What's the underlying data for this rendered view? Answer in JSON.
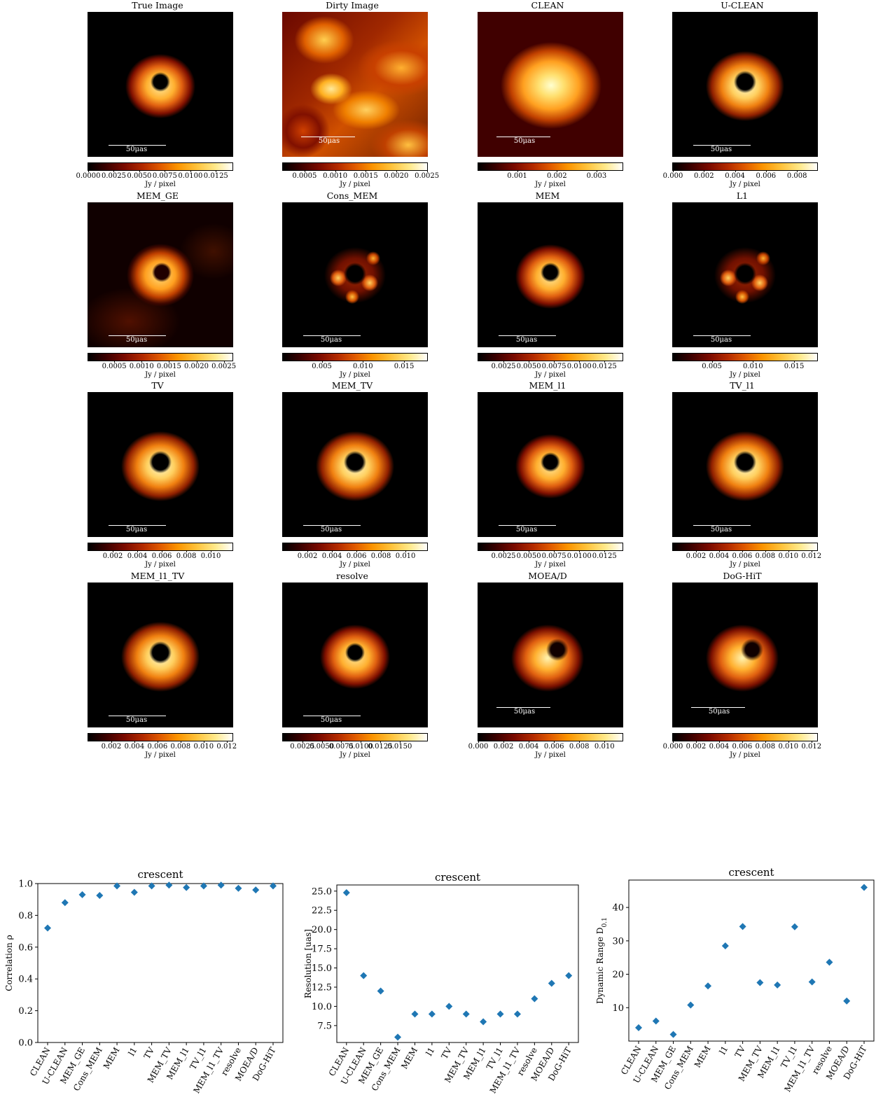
{
  "panels": [
    {
      "title": "True Image",
      "scalebar": "50μas",
      "bar": "low",
      "unit": "Jy / pixel",
      "style": "ring",
      "ticks": [
        {
          "label": "0.0000",
          "f": 0
        },
        {
          "label": "0.0025",
          "f": 0.177
        },
        {
          "label": "0.0050",
          "f": 0.354
        },
        {
          "label": "0.0075",
          "f": 0.531
        },
        {
          "label": "0.0100",
          "f": 0.708
        },
        {
          "label": "0.0125",
          "f": 0.885
        }
      ]
    },
    {
      "title": "Dirty Image",
      "scalebar": "50μas",
      "bar": "high",
      "unit": "Jy / pixel",
      "style": "dirty",
      "ticks": [
        {
          "label": "0.0005",
          "f": 0.15
        },
        {
          "label": "0.0010",
          "f": 0.362
        },
        {
          "label": "0.0015",
          "f": 0.574
        },
        {
          "label": "0.0020",
          "f": 0.786
        },
        {
          "label": "0.0025",
          "f": 0.998
        }
      ]
    },
    {
      "title": "CLEAN",
      "scalebar": "50μas",
      "bar": "high",
      "unit": "Jy / pixel",
      "style": "blob",
      "ticks": [
        {
          "label": "0.001",
          "f": 0.27
        },
        {
          "label": "0.002",
          "f": 0.545
        },
        {
          "label": "0.003",
          "f": 0.82
        }
      ]
    },
    {
      "title": "U-CLEAN",
      "scalebar": "50μas",
      "bar": "low",
      "unit": "Jy / pixel",
      "style": "ring-bright",
      "ticks": [
        {
          "label": "0.000",
          "f": 0
        },
        {
          "label": "0.002",
          "f": 0.215
        },
        {
          "label": "0.004",
          "f": 0.43
        },
        {
          "label": "0.006",
          "f": 0.645
        },
        {
          "label": "0.008",
          "f": 0.86
        }
      ]
    },
    {
      "title": "MEM_GE",
      "scalebar": "50μas",
      "bar": "low",
      "unit": "Jy / pixel",
      "style": "ring-noise",
      "ticks": [
        {
          "label": "0.0005",
          "f": 0.18
        },
        {
          "label": "0.0010",
          "f": 0.37
        },
        {
          "label": "0.0015",
          "f": 0.56
        },
        {
          "label": "0.0020",
          "f": 0.75
        },
        {
          "label": "0.0025",
          "f": 0.94
        }
      ]
    },
    {
      "title": "Cons_MEM",
      "scalebar": "50μas",
      "bar": "low",
      "unit": "Jy / pixel",
      "style": "ring-clumpy",
      "ticks": [
        {
          "label": "0.005",
          "f": 0.27
        },
        {
          "label": "0.010",
          "f": 0.555
        },
        {
          "label": "0.015",
          "f": 0.84
        }
      ]
    },
    {
      "title": "MEM",
      "scalebar": "50μas",
      "bar": "low",
      "unit": "Jy / pixel",
      "style": "ring",
      "ticks": [
        {
          "label": "0.0025",
          "f": 0.175
        },
        {
          "label": "0.0050",
          "f": 0.35
        },
        {
          "label": "0.0075",
          "f": 0.525
        },
        {
          "label": "0.0100",
          "f": 0.7
        },
        {
          "label": "0.0125",
          "f": 0.875
        }
      ]
    },
    {
      "title": "L1",
      "scalebar": "50μas",
      "bar": "low",
      "unit": "Jy / pixel",
      "style": "ring-clumpy",
      "ticks": [
        {
          "label": "0.005",
          "f": 0.27
        },
        {
          "label": "0.010",
          "f": 0.555
        },
        {
          "label": "0.015",
          "f": 0.84
        }
      ]
    },
    {
      "title": "TV",
      "scalebar": "50μas",
      "bar": "low",
      "unit": "Jy / pixel",
      "style": "ring-bright",
      "ticks": [
        {
          "label": "0.002",
          "f": 0.17
        },
        {
          "label": "0.004",
          "f": 0.34
        },
        {
          "label": "0.006",
          "f": 0.51
        },
        {
          "label": "0.008",
          "f": 0.68
        },
        {
          "label": "0.010",
          "f": 0.85
        }
      ]
    },
    {
      "title": "MEM_TV",
      "scalebar": "50μas",
      "bar": "low",
      "unit": "Jy / pixel",
      "style": "ring-bright",
      "ticks": [
        {
          "label": "0.002",
          "f": 0.17
        },
        {
          "label": "0.004",
          "f": 0.34
        },
        {
          "label": "0.006",
          "f": 0.51
        },
        {
          "label": "0.008",
          "f": 0.68
        },
        {
          "label": "0.010",
          "f": 0.85
        }
      ]
    },
    {
      "title": "MEM_l1",
      "scalebar": "50μas",
      "bar": "low",
      "unit": "Jy / pixel",
      "style": "ring",
      "ticks": [
        {
          "label": "0.0025",
          "f": 0.175
        },
        {
          "label": "0.0050",
          "f": 0.35
        },
        {
          "label": "0.0075",
          "f": 0.525
        },
        {
          "label": "0.0100",
          "f": 0.7
        },
        {
          "label": "0.0125",
          "f": 0.875
        }
      ]
    },
    {
      "title": "TV_l1",
      "scalebar": "50μas",
      "bar": "low",
      "unit": "Jy / pixel",
      "style": "ring-bright",
      "ticks": [
        {
          "label": "0.002",
          "f": 0.16
        },
        {
          "label": "0.004",
          "f": 0.32
        },
        {
          "label": "0.006",
          "f": 0.48
        },
        {
          "label": "0.008",
          "f": 0.64
        },
        {
          "label": "0.010",
          "f": 0.8
        },
        {
          "label": "0.012",
          "f": 0.96
        }
      ]
    },
    {
      "title": "MEM_l1_TV",
      "scalebar": "50μas",
      "bar": "low",
      "unit": "Jy / pixel",
      "style": "ring-bright",
      "ticks": [
        {
          "label": "0.002",
          "f": 0.16
        },
        {
          "label": "0.004",
          "f": 0.32
        },
        {
          "label": "0.006",
          "f": 0.48
        },
        {
          "label": "0.008",
          "f": 0.64
        },
        {
          "label": "0.010",
          "f": 0.8
        },
        {
          "label": "0.012",
          "f": 0.96
        }
      ]
    },
    {
      "title": "resolve",
      "scalebar": "50μas",
      "bar": "low",
      "unit": "Jy / pixel",
      "style": "ring",
      "ticks": [
        {
          "label": "0.0025",
          "f": 0.135
        },
        {
          "label": "0.0050",
          "f": 0.27
        },
        {
          "label": "0.0075",
          "f": 0.405
        },
        {
          "label": "0.0100",
          "f": 0.54
        },
        {
          "label": "0.0125",
          "f": 0.675
        },
        {
          "label": "0.0150",
          "f": 0.81
        }
      ]
    },
    {
      "title": "MOEA/D",
      "scalebar": "50μas",
      "bar": "high",
      "unit": "Jy / pixel",
      "style": "ring-soft",
      "ticks": [
        {
          "label": "0.000",
          "f": 0
        },
        {
          "label": "0.002",
          "f": 0.175
        },
        {
          "label": "0.004",
          "f": 0.35
        },
        {
          "label": "0.006",
          "f": 0.525
        },
        {
          "label": "0.008",
          "f": 0.7
        },
        {
          "label": "0.010",
          "f": 0.875
        }
      ]
    },
    {
      "title": "DoG-HiT",
      "scalebar": "50μas",
      "bar": "high",
      "unit": "Jy / pixel",
      "style": "ring-soft",
      "ticks": [
        {
          "label": "0.000",
          "f": 0
        },
        {
          "label": "0.002",
          "f": 0.16
        },
        {
          "label": "0.004",
          "f": 0.32
        },
        {
          "label": "0.006",
          "f": 0.48
        },
        {
          "label": "0.008",
          "f": 0.64
        },
        {
          "label": "0.010",
          "f": 0.8
        },
        {
          "label": "0.012",
          "f": 0.96
        }
      ]
    }
  ],
  "chart_data": [
    {
      "type": "scatter",
      "title": "crescent",
      "ylabel": "Correlation ρ",
      "categories": [
        "CLEAN",
        "U-CLEAN",
        "MEM_GE",
        "Cons_MEM",
        "MEM",
        "l1",
        "TV",
        "MEM_TV",
        "MEM_l1",
        "TV_l1",
        "MEM_l1_TV",
        "resolve",
        "MOEA/D",
        "DoG-HiT"
      ],
      "values": [
        0.72,
        0.88,
        0.93,
        0.925,
        0.985,
        0.945,
        0.985,
        0.99,
        0.975,
        0.985,
        0.99,
        0.97,
        0.96,
        0.985
      ],
      "ylim": [
        0,
        1
      ],
      "yticks": [
        "0.0",
        "0.2",
        "0.4",
        "0.6",
        "0.8",
        "1.0"
      ],
      "ytickvals": [
        0,
        0.2,
        0.4,
        0.6,
        0.8,
        1.0
      ]
    },
    {
      "type": "scatter",
      "title": "crescent",
      "ylabel": "Resolution [uas]",
      "categories": [
        "CLEAN",
        "U-CLEAN",
        "MEM_GE",
        "Cons_MEM",
        "MEM",
        "l1",
        "TV",
        "MEM_TV",
        "MEM_l1",
        "TV_l1",
        "MEM_l1_TV",
        "resolve",
        "MOEA/D",
        "DoG-HiT"
      ],
      "values": [
        24.8,
        14,
        12,
        6,
        9,
        9,
        10,
        9,
        8,
        9,
        9,
        11,
        13,
        14
      ],
      "ylim": [
        5.3,
        25.8
      ],
      "yticks": [
        "7.5",
        "10.0",
        "12.5",
        "15.0",
        "17.5",
        "20.0",
        "22.5",
        "25.0"
      ],
      "ytickvals": [
        7.5,
        10,
        12.5,
        15,
        17.5,
        20,
        22.5,
        25
      ]
    },
    {
      "type": "scatter",
      "title": "crescent",
      "ylabel": "Dynamic Range D",
      "ylabel_sub": "0.1",
      "categories": [
        "CLEAN",
        "U-CLEAN",
        "MEM_GE",
        "Cons_MEM",
        "MEM",
        "l1",
        "TV",
        "MEM_TV",
        "MEM_l1",
        "TV_l1",
        "MEM_l1_TV",
        "resolve",
        "MOEA/D",
        "DoG-HiT"
      ],
      "values": [
        4,
        6,
        2,
        10.8,
        16.5,
        28.5,
        34.3,
        17.5,
        16.8,
        34.2,
        17.7,
        23.6,
        12,
        46
      ],
      "ylim": [
        0,
        48.2
      ],
      "yticks": [
        "10",
        "20",
        "30",
        "40"
      ],
      "ytickvals": [
        10,
        20,
        30,
        40
      ]
    }
  ],
  "colors": {
    "marker": "#1f77b4"
  }
}
